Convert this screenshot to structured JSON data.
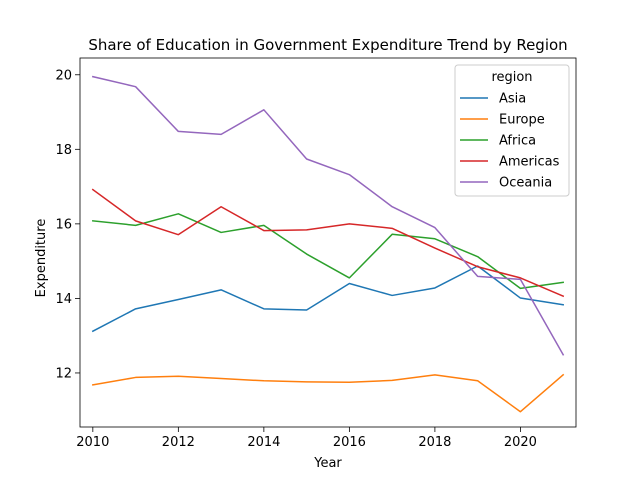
{
  "chart_data": {
    "type": "line",
    "title": "Share of Education in Government Expenditure Trend by Region",
    "xlabel": "Year",
    "ylabel": "Expenditure",
    "xlim": [
      2009.7,
      2021.3
    ],
    "ylim": [
      10.55,
      20.45
    ],
    "x_ticks": [
      2010,
      2012,
      2014,
      2016,
      2018,
      2020
    ],
    "y_ticks": [
      12,
      14,
      16,
      18,
      20
    ],
    "grid": false,
    "legend": {
      "title": "region",
      "placement": "top-right"
    },
    "x": [
      2010,
      2011,
      2012,
      2013,
      2014,
      2015,
      2016,
      2017,
      2018,
      2019,
      2020,
      2021
    ],
    "series": [
      {
        "name": "Asia",
        "color": "#1f77b4",
        "values": [
          13.12,
          13.72,
          13.97,
          14.23,
          13.72,
          13.69,
          14.4,
          14.08,
          14.28,
          14.87,
          14.01,
          13.83
        ]
      },
      {
        "name": "Europe",
        "color": "#ff7f0e",
        "values": [
          11.68,
          11.88,
          11.91,
          11.85,
          11.79,
          11.76,
          11.75,
          11.8,
          11.95,
          11.79,
          10.96,
          11.95
        ]
      },
      {
        "name": "Africa",
        "color": "#2ca02c",
        "values": [
          16.08,
          15.96,
          16.27,
          15.77,
          15.96,
          15.19,
          14.55,
          15.72,
          15.6,
          15.12,
          14.27,
          14.43
        ]
      },
      {
        "name": "Americas",
        "color": "#d62728",
        "values": [
          16.92,
          16.08,
          15.71,
          16.46,
          15.82,
          15.84,
          16.0,
          15.88,
          15.35,
          14.85,
          14.55,
          14.06
        ]
      },
      {
        "name": "Oceania",
        "color": "#9467bd",
        "values": [
          19.95,
          19.68,
          18.48,
          18.4,
          19.06,
          17.74,
          17.32,
          16.46,
          15.9,
          14.59,
          14.51,
          12.49
        ]
      }
    ]
  }
}
